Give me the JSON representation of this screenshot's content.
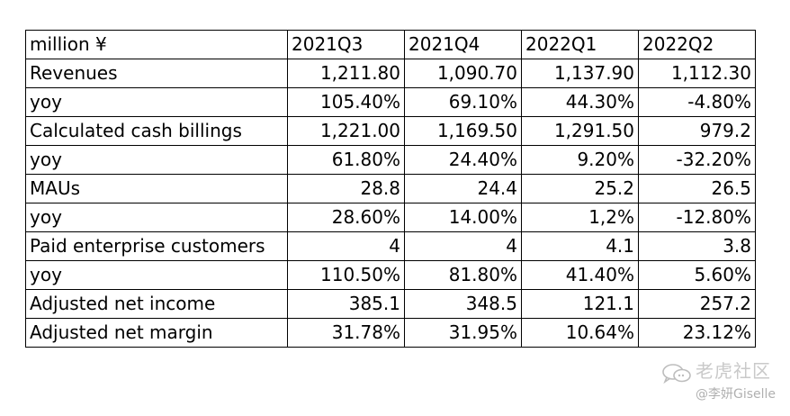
{
  "table": {
    "header": [
      "million ¥",
      "2021Q3",
      "2021Q4",
      "2022Q1",
      "2022Q2"
    ],
    "rows": [
      {
        "label": "Revenues",
        "values": [
          "1,211.80",
          "1,090.70",
          "1,137.90",
          "1,112.30"
        ]
      },
      {
        "label": "yoy",
        "values": [
          "105.40%",
          "69.10%",
          "44.30%",
          "-4.80%"
        ]
      },
      {
        "label": "Calculated cash billings",
        "values": [
          "1,221.00",
          "1,169.50",
          "1,291.50",
          "979.2"
        ]
      },
      {
        "label": "yoy",
        "values": [
          "61.80%",
          "24.40%",
          "9.20%",
          "-32.20%"
        ]
      },
      {
        "label": "MAUs",
        "values": [
          "28.8",
          "24.4",
          "25.2",
          "26.5"
        ]
      },
      {
        "label": "yoy",
        "values": [
          "28.60%",
          "14.00%",
          "1,2%",
          "-12.80%"
        ]
      },
      {
        "label": "Paid enterprise customers",
        "values": [
          "4",
          "4",
          "4.1",
          "3.8"
        ]
      },
      {
        "label": "yoy",
        "values": [
          "110.50%",
          "81.80%",
          "41.40%",
          "5.60%"
        ]
      },
      {
        "label": "Adjusted net income",
        "values": [
          "385.1",
          "348.5",
          "121.1",
          "257.2"
        ]
      },
      {
        "label": "Adjusted net margin",
        "values": [
          "31.78%",
          "31.95%",
          "10.64%",
          "23.12%"
        ]
      }
    ]
  },
  "watermark": {
    "title": "老虎社区",
    "author": "@李妍Giselle",
    "icon": "chat-bubbles-icon"
  }
}
